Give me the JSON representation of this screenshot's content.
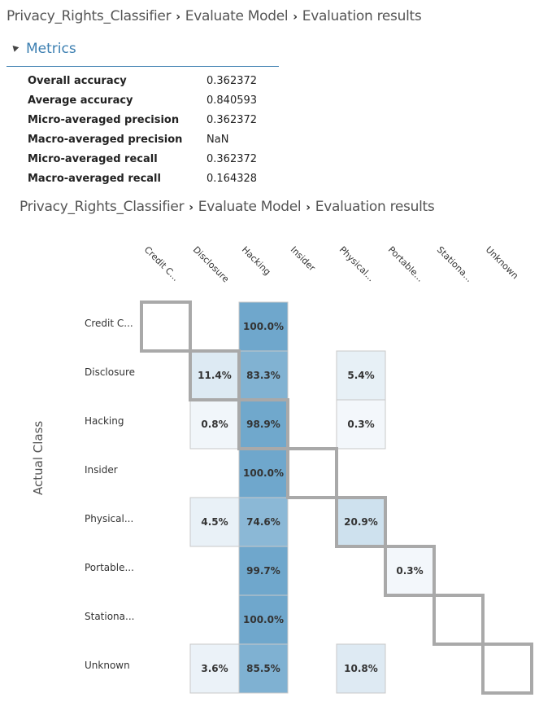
{
  "breadcrumb": {
    "project": "Privacy_Rights_Classifier",
    "module": "Evaluate Model",
    "page": "Evaluation results",
    "separator": "›"
  },
  "metrics_section": {
    "title": "Metrics",
    "rows": [
      {
        "label": "Overall accuracy",
        "value": "0.362372"
      },
      {
        "label": "Average accuracy",
        "value": "0.840593"
      },
      {
        "label": "Micro-averaged precision",
        "value": "0.362372"
      },
      {
        "label": "Macro-averaged precision",
        "value": "NaN"
      },
      {
        "label": "Micro-averaged recall",
        "value": "0.362372"
      },
      {
        "label": "Macro-averaged recall",
        "value": "0.164328"
      }
    ]
  },
  "confusion_matrix": {
    "column_labels": [
      "Credit C...",
      "Disclosure",
      "Hacking",
      "Insider",
      "Physical...",
      "Portable...",
      "Stationa...",
      "Unknown"
    ],
    "row_labels": [
      "Credit C...",
      "Disclosure",
      "Hacking",
      "Insider",
      "Physical...",
      "Portable...",
      "Stationa...",
      "Unknown"
    ],
    "y_axis_label": "Actual Class",
    "cells": [
      {
        "row": 0,
        "col": 2,
        "label": "100.0%",
        "value": 100.0
      },
      {
        "row": 1,
        "col": 1,
        "label": "11.4%",
        "value": 11.4
      },
      {
        "row": 1,
        "col": 2,
        "label": "83.3%",
        "value": 83.3
      },
      {
        "row": 1,
        "col": 4,
        "label": "5.4%",
        "value": 5.4
      },
      {
        "row": 2,
        "col": 1,
        "label": "0.8%",
        "value": 0.8
      },
      {
        "row": 2,
        "col": 2,
        "label": "98.9%",
        "value": 98.9
      },
      {
        "row": 2,
        "col": 4,
        "label": "0.3%",
        "value": 0.3
      },
      {
        "row": 3,
        "col": 2,
        "label": "100.0%",
        "value": 100.0
      },
      {
        "row": 4,
        "col": 1,
        "label": "4.5%",
        "value": 4.5
      },
      {
        "row": 4,
        "col": 2,
        "label": "74.6%",
        "value": 74.6
      },
      {
        "row": 4,
        "col": 4,
        "label": "20.9%",
        "value": 20.9
      },
      {
        "row": 5,
        "col": 2,
        "label": "99.7%",
        "value": 99.7
      },
      {
        "row": 5,
        "col": 5,
        "label": "0.3%",
        "value": 0.3
      },
      {
        "row": 6,
        "col": 2,
        "label": "100.0%",
        "value": 100.0
      },
      {
        "row": 7,
        "col": 1,
        "label": "3.6%",
        "value": 3.6
      },
      {
        "row": 7,
        "col": 2,
        "label": "85.5%",
        "value": 85.5
      },
      {
        "row": 7,
        "col": 4,
        "label": "10.8%",
        "value": 10.8
      }
    ],
    "colors": {
      "high": "#6fa7cc",
      "low": "#f4f8fb",
      "cell_border": "#c8c8c8",
      "diagonal_border": "#a9a9a9"
    }
  }
}
